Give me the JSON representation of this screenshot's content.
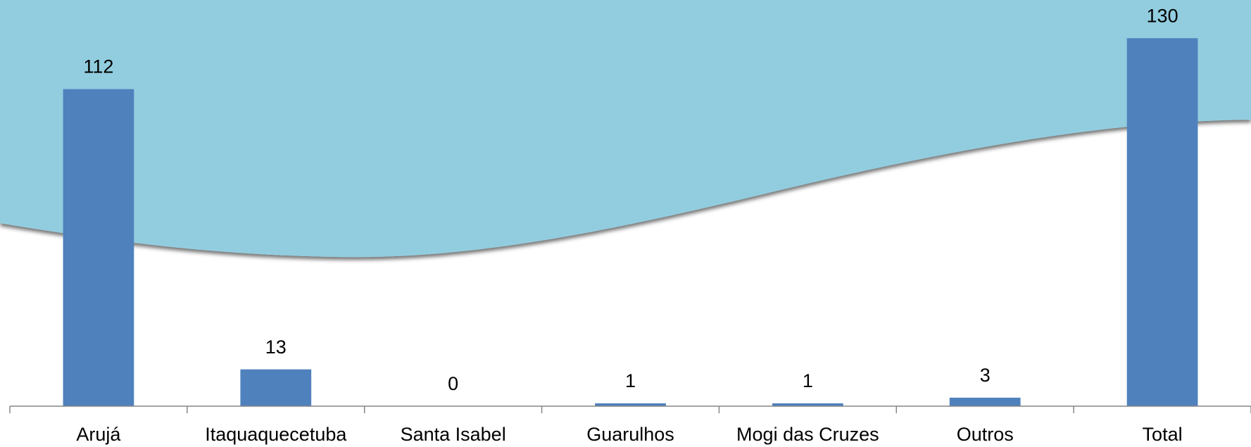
{
  "chart_data": {
    "type": "bar",
    "categories": [
      "Arujá",
      "Itaquaquecetuba",
      "Santa Isabel",
      "Guarulhos",
      "Mogi das Cruzes",
      "Outros",
      "Total"
    ],
    "values": [
      112,
      13,
      0,
      1,
      1,
      3,
      130
    ],
    "color": "#4f81bd",
    "ylim": [
      0,
      140
    ]
  }
}
